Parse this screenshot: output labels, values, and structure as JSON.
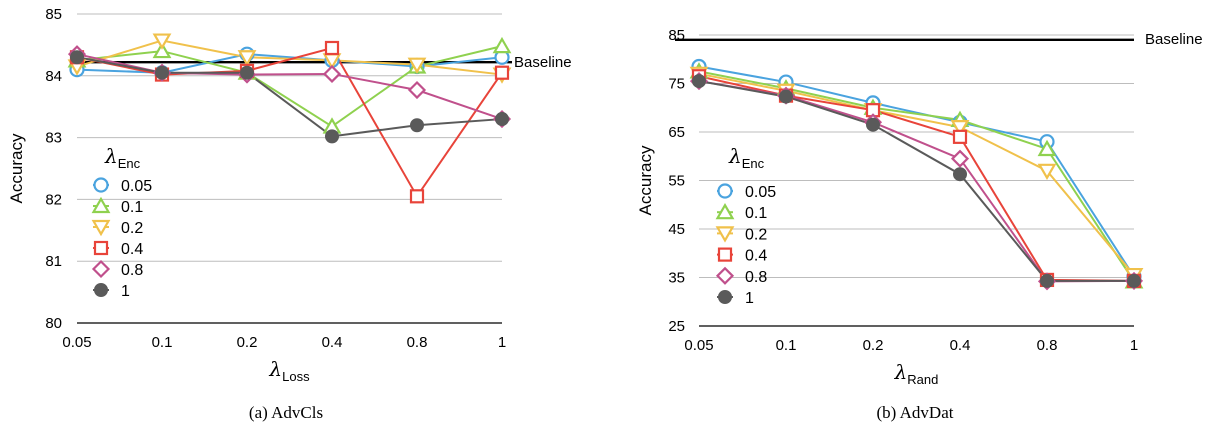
{
  "chart_data": [
    {
      "type": "line",
      "caption": "(a) AdvCls",
      "xlabel_symbol": "λ",
      "xlabel_sub": "Loss",
      "ylabel": "Accuracy",
      "categories": [
        "0.05",
        "0.1",
        "0.2",
        "0.4",
        "0.8",
        "1"
      ],
      "ylim": [
        80,
        85
      ],
      "yticks": [
        "80",
        "81",
        "82",
        "83",
        "84",
        "85"
      ],
      "grid": true,
      "baseline": {
        "label": "Baseline",
        "value": 84.22
      },
      "legend_title_symbol": "λ",
      "legend_title_sub": "Enc",
      "legend_position": "left",
      "series": [
        {
          "name": "0.05",
          "marker": "circle",
          "color": "#4aa3df",
          "values": [
            84.1,
            84.05,
            84.35,
            84.25,
            84.15,
            84.3
          ]
        },
        {
          "name": "0.1",
          "marker": "triangle-up",
          "color": "#8fd14f",
          "values": [
            84.25,
            84.4,
            84.05,
            83.18,
            84.15,
            84.48
          ]
        },
        {
          "name": "0.2",
          "marker": "triangle-down",
          "color": "#f0c14b",
          "values": [
            84.15,
            84.57,
            84.3,
            84.25,
            84.18,
            84.02
          ]
        },
        {
          "name": "0.4",
          "marker": "square",
          "color": "#e8443a",
          "values": [
            84.3,
            84.02,
            84.08,
            84.45,
            82.05,
            84.05
          ]
        },
        {
          "name": "0.8",
          "marker": "diamond",
          "color": "#c0508c",
          "values": [
            84.35,
            84.05,
            84.02,
            84.03,
            83.77,
            83.3
          ]
        },
        {
          "name": "1",
          "marker": "filled-circle",
          "color": "#5a5a5a",
          "values": [
            84.3,
            84.05,
            84.05,
            83.02,
            83.2,
            83.3
          ]
        }
      ]
    },
    {
      "type": "line",
      "caption": "(b) AdvDat",
      "xlabel_symbol": "λ",
      "xlabel_sub": "Rand",
      "ylabel": "Accuracy",
      "categories": [
        "0.05",
        "0.1",
        "0.2",
        "0.4",
        "0.8",
        "1"
      ],
      "ylim": [
        25,
        85
      ],
      "yticks": [
        "25",
        "35",
        "45",
        "55",
        "65",
        "75",
        "85"
      ],
      "grid": true,
      "baseline": {
        "label": "Baseline",
        "value": 84
      },
      "legend_title_symbol": "λ",
      "legend_title_sub": "Enc",
      "legend_position": "left",
      "series": [
        {
          "name": "0.05",
          "marker": "circle",
          "color": "#4aa3df",
          "values": [
            78.5,
            75.3,
            71.0,
            67.0,
            63.0,
            35.2
          ]
        },
        {
          "name": "0.1",
          "marker": "triangle-up",
          "color": "#8fd14f",
          "values": [
            77.5,
            74.0,
            70.0,
            67.5,
            61.5,
            34.2
          ]
        },
        {
          "name": "0.2",
          "marker": "triangle-down",
          "color": "#f0c14b",
          "values": [
            77.0,
            73.5,
            69.5,
            66.0,
            57.0,
            35.5
          ]
        },
        {
          "name": "0.4",
          "marker": "square",
          "color": "#e8443a",
          "values": [
            76.5,
            72.5,
            69.5,
            64.0,
            34.5,
            34.3
          ]
        },
        {
          "name": "0.8",
          "marker": "diamond",
          "color": "#c0508c",
          "values": [
            75.5,
            72.5,
            67.0,
            59.5,
            34.2,
            34.3
          ]
        },
        {
          "name": "1",
          "marker": "filled-circle",
          "color": "#5a5a5a",
          "values": [
            75.5,
            72.3,
            66.5,
            56.3,
            34.3,
            34.3
          ]
        }
      ]
    }
  ]
}
